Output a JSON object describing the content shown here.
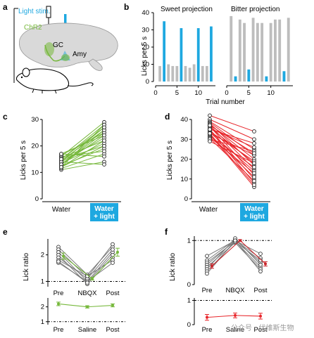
{
  "panels": {
    "a": {
      "label": "a",
      "texts": {
        "stim": "Light stim.",
        "chr2": "ChR2",
        "gc": "GC",
        "amy": "Amy"
      },
      "colors": {
        "blue": "#1ea8e0",
        "green": "#76b83b",
        "brain": "#d9d9d9"
      }
    },
    "b": {
      "label": "b",
      "chart_data": {
        "type": "bar",
        "xlabel": "Trial number",
        "ylabel": "Licks per 5 s",
        "ylim": [
          0,
          40
        ],
        "yticks": [
          0,
          10,
          20,
          30,
          40
        ],
        "xticks": [
          0,
          5,
          10
        ],
        "series": [
          {
            "name": "Sweet projection",
            "x": [
              1,
              2,
              3,
              4,
              5,
              6,
              7,
              8,
              9,
              10,
              11,
              12,
              13
            ],
            "values": [
              9,
              35,
              10,
              9,
              9,
              31,
              9,
              8,
              10,
              31,
              9,
              9,
              32
            ],
            "light_on": [
              false,
              true,
              false,
              false,
              false,
              true,
              false,
              false,
              false,
              true,
              false,
              false,
              true
            ]
          },
          {
            "name": "Bitter projection",
            "x": [
              1,
              2,
              3,
              4,
              5,
              6,
              7,
              8,
              9,
              10,
              11,
              12,
              13,
              14
            ],
            "values": [
              38,
              3,
              36,
              34,
              7,
              37,
              34,
              34,
              3,
              34,
              36,
              36,
              6,
              37
            ],
            "light_on": [
              false,
              true,
              false,
              false,
              true,
              false,
              false,
              false,
              true,
              false,
              false,
              false,
              true,
              false
            ]
          }
        ],
        "colors": {
          "light": "#1ea8e0",
          "no_light": "#bdbdbd"
        }
      }
    },
    "c": {
      "label": "c",
      "chart_data": {
        "type": "line",
        "ylabel": "Licks per 5 s",
        "ylim": [
          0,
          30
        ],
        "yticks": [
          0,
          10,
          20,
          30
        ],
        "categories": [
          "Water",
          "Water + light"
        ],
        "category_lines": [
          "Water",
          "Water",
          "+ light"
        ],
        "pairs": [
          [
            11,
            14
          ],
          [
            11.5,
            17
          ],
          [
            12,
            20
          ],
          [
            12,
            22
          ],
          [
            12.5,
            19
          ],
          [
            13,
            24
          ],
          [
            13,
            25
          ],
          [
            13.5,
            21
          ],
          [
            14,
            23
          ],
          [
            14,
            27
          ],
          [
            14.5,
            26
          ],
          [
            15,
            20
          ],
          [
            15,
            28
          ],
          [
            15.5,
            22
          ],
          [
            16,
            18
          ],
          [
            16,
            29
          ],
          [
            16.5,
            25
          ],
          [
            17,
            24
          ],
          [
            17,
            16
          ],
          [
            14,
            13
          ],
          [
            13,
            26
          ],
          [
            12,
            28
          ],
          [
            15,
            27
          ]
        ],
        "color": "#76b83b"
      }
    },
    "d": {
      "label": "d",
      "chart_data": {
        "type": "line",
        "ylabel": "Licks per 5 s",
        "ylim": [
          0,
          40
        ],
        "yticks": [
          0,
          10,
          20,
          30,
          40
        ],
        "categories": [
          "Water",
          "Water + light"
        ],
        "pairs": [
          [
            42,
            34
          ],
          [
            40,
            30
          ],
          [
            39,
            25
          ],
          [
            38.5,
            22
          ],
          [
            38,
            17
          ],
          [
            37.5,
            20
          ],
          [
            37,
            15
          ],
          [
            36.5,
            12
          ],
          [
            36,
            18
          ],
          [
            35.5,
            26
          ],
          [
            35,
            10
          ],
          [
            34.5,
            8
          ],
          [
            34,
            19
          ],
          [
            33.5,
            14
          ],
          [
            33,
            22
          ],
          [
            32.5,
            6
          ],
          [
            32,
            11
          ],
          [
            31.5,
            16
          ],
          [
            31,
            13
          ],
          [
            30.5,
            9
          ],
          [
            30,
            24
          ],
          [
            29,
            18
          ],
          [
            37,
            23
          ],
          [
            35,
            28
          ],
          [
            33,
            7
          ]
        ],
        "color": "#e8262b"
      }
    },
    "e": {
      "label": "e",
      "chart_data": [
        {
          "type": "line",
          "ylabel": "Lick ratio",
          "categories": [
            "Pre",
            "NBQX",
            "Post"
          ],
          "yticks": [
            1,
            2
          ],
          "ylim": [
            0.8,
            2.6
          ],
          "reference_y": 1,
          "individual": [
            [
              2.3,
              1.25,
              2.3
            ],
            [
              2.2,
              1.15,
              2.4
            ],
            [
              2.1,
              1.0,
              2.1
            ],
            [
              2.0,
              0.9,
              1.9
            ],
            [
              1.9,
              1.1,
              2.2
            ],
            [
              1.8,
              1.2,
              1.8
            ],
            [
              1.7,
              1.0,
              1.7
            ],
            [
              1.75,
              0.95,
              2.0
            ]
          ],
          "mean": [
            1.95,
            1.1,
            2.1
          ],
          "sem": [
            0.12,
            0.05,
            0.15
          ],
          "color": "#76b83b"
        },
        {
          "type": "line",
          "categories": [
            "Pre",
            "Saline",
            "Post"
          ],
          "yticks": [
            1,
            2
          ],
          "ylim": [
            0.8,
            2.6
          ],
          "reference_y": 1,
          "mean": [
            2.2,
            2.0,
            2.1
          ],
          "sem": [
            0.12,
            0.08,
            0.1
          ],
          "color": "#76b83b"
        }
      ]
    },
    "f": {
      "label": "f",
      "chart_data": [
        {
          "type": "line",
          "ylabel": "Lick ratio",
          "categories": [
            "Pre",
            "NBQX",
            "Post"
          ],
          "yticks": [
            0,
            1
          ],
          "ylim": [
            0,
            1.1
          ],
          "reference_y": 1,
          "individual": [
            [
              0.65,
              1.0,
              0.7
            ],
            [
              0.55,
              1.02,
              0.5
            ],
            [
              0.5,
              0.98,
              0.4
            ],
            [
              0.45,
              1.0,
              0.6
            ],
            [
              0.4,
              0.95,
              0.35
            ],
            [
              0.35,
              1.05,
              0.45
            ],
            [
              0.3,
              0.97,
              0.55
            ],
            [
              0.25,
              1.0,
              0.3
            ]
          ],
          "mean": [
            0.42,
            1.0,
            0.47
          ],
          "sem": [
            0.05,
            0.02,
            0.05
          ],
          "color": "#c9242a"
        },
        {
          "type": "line",
          "categories": [
            "Pre",
            "Saline",
            "Post"
          ],
          "yticks": [
            0,
            1
          ],
          "ylim": [
            0,
            1.1
          ],
          "reference_y": 1,
          "mean": [
            0.3,
            0.38,
            0.35
          ],
          "sem": [
            0.12,
            0.1,
            0.12
          ],
          "color": "#e8262b"
        }
      ]
    }
  },
  "watermark": "公众号 · 伏维斯生物"
}
